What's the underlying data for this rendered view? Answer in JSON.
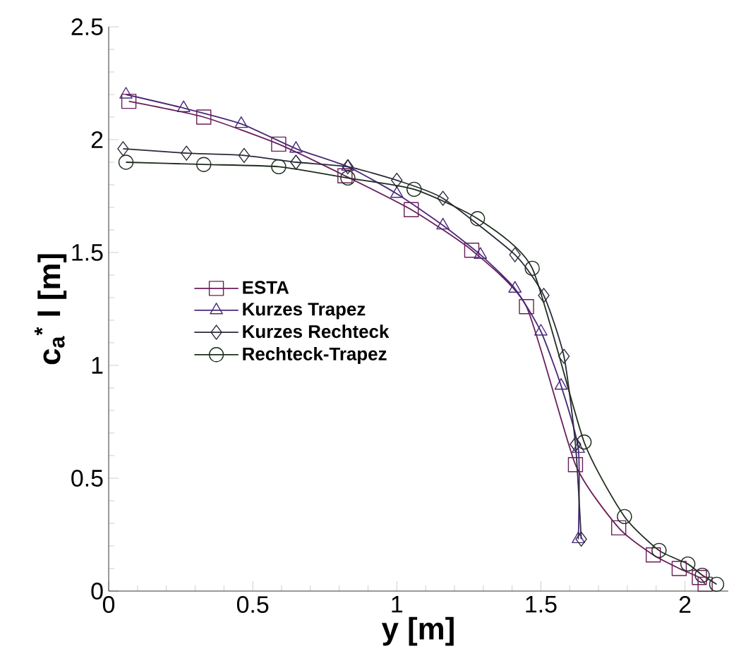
{
  "chart_data": {
    "type": "line",
    "xlabel": "y [m]",
    "ylabel": "c$_{a}$$^{*}$ l [m]",
    "xlim": [
      0,
      2.15
    ],
    "ylim": [
      0,
      2.5
    ],
    "xticks": [
      0,
      0.5,
      1,
      1.5,
      2
    ],
    "yticks": [
      0,
      0.5,
      1,
      1.5,
      2,
      2.5
    ],
    "legend": "left",
    "line_style": "solid",
    "series": [
      {
        "name": "ESTA",
        "color": "#6a1f5a",
        "marker": "square",
        "x": [
          0.07,
          0.33,
          0.59,
          0.82,
          1.05,
          1.26,
          1.45,
          1.62,
          1.77,
          1.89,
          1.98,
          2.05,
          2.07
        ],
        "values": [
          2.17,
          2.1,
          1.98,
          1.84,
          1.69,
          1.51,
          1.26,
          0.56,
          0.28,
          0.16,
          0.1,
          0.06,
          0.03
        ]
      },
      {
        "name": "Kurzes Trapez",
        "color": "#4a2a7a",
        "marker": "triangle",
        "x": [
          0.06,
          0.26,
          0.46,
          0.65,
          0.83,
          1.0,
          1.16,
          1.29,
          1.41,
          1.5,
          1.57,
          1.63,
          1.63
        ],
        "values": [
          2.2,
          2.14,
          2.07,
          1.96,
          1.88,
          1.76,
          1.62,
          1.49,
          1.34,
          1.15,
          0.91,
          0.63,
          0.23
        ]
      },
      {
        "name": "Kurzes Rechteck",
        "color": "#2a2a3a",
        "marker": "diamond",
        "x": [
          0.05,
          0.27,
          0.47,
          0.65,
          0.83,
          1.0,
          1.16,
          1.41,
          1.51,
          1.58,
          1.62,
          1.64
        ],
        "values": [
          1.96,
          1.94,
          1.93,
          1.9,
          1.88,
          1.82,
          1.74,
          1.49,
          1.31,
          1.04,
          0.65,
          0.23
        ]
      },
      {
        "name": "Rechteck-Trapez",
        "color": "#1e2e1e",
        "marker": "circle",
        "x": [
          0.06,
          0.33,
          0.59,
          0.83,
          1.06,
          1.28,
          1.47,
          1.65,
          1.79,
          1.91,
          2.01,
          2.06,
          2.11
        ],
        "values": [
          1.9,
          1.89,
          1.88,
          1.83,
          1.78,
          1.65,
          1.43,
          0.66,
          0.33,
          0.18,
          0.12,
          0.07,
          0.03
        ]
      }
    ]
  }
}
